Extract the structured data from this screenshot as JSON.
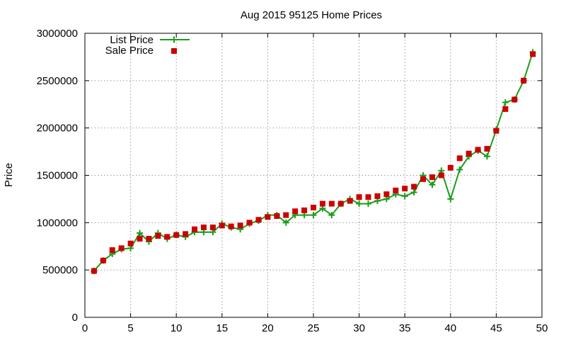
{
  "chart_data": {
    "type": "line",
    "title": "Aug 2015 95125 Home Prices",
    "xlabel": "",
    "ylabel": "Price",
    "xlim": [
      0,
      50
    ],
    "ylim": [
      0,
      3000000
    ],
    "x_ticks": [
      0,
      5,
      10,
      15,
      20,
      25,
      30,
      35,
      40,
      45,
      50
    ],
    "y_ticks": [
      0,
      500000,
      1000000,
      1500000,
      2000000,
      2500000,
      3000000
    ],
    "grid": true,
    "legend_position": "top-left",
    "x": [
      1,
      2,
      3,
      4,
      5,
      6,
      7,
      8,
      9,
      10,
      11,
      12,
      13,
      14,
      15,
      16,
      17,
      18,
      19,
      20,
      21,
      22,
      23,
      24,
      25,
      26,
      27,
      28,
      29,
      30,
      31,
      32,
      33,
      34,
      35,
      36,
      37,
      38,
      39,
      40,
      41,
      42,
      43,
      44,
      45,
      46,
      47,
      48,
      49
    ],
    "series": [
      {
        "name": "List Price",
        "style": "line-with-plus-markers",
        "color": "#1a9e1a",
        "values": [
          490000,
          600000,
          670000,
          720000,
          730000,
          890000,
          800000,
          890000,
          830000,
          870000,
          850000,
          900000,
          900000,
          900000,
          990000,
          950000,
          930000,
          990000,
          1020000,
          1080000,
          1080000,
          1000000,
          1080000,
          1080000,
          1080000,
          1150000,
          1080000,
          1200000,
          1250000,
          1200000,
          1200000,
          1230000,
          1250000,
          1300000,
          1280000,
          1320000,
          1500000,
          1400000,
          1550000,
          1250000,
          1560000,
          1700000,
          1760000,
          1700000,
          1980000,
          2270000,
          2300000,
          2500000,
          2800000
        ]
      },
      {
        "name": "Sale Price",
        "style": "square-markers",
        "color": "#cc0000",
        "values": [
          490000,
          600000,
          710000,
          730000,
          780000,
          830000,
          830000,
          860000,
          850000,
          870000,
          880000,
          930000,
          950000,
          950000,
          970000,
          960000,
          970000,
          1000000,
          1030000,
          1060000,
          1070000,
          1080000,
          1120000,
          1130000,
          1160000,
          1200000,
          1200000,
          1200000,
          1230000,
          1270000,
          1270000,
          1280000,
          1300000,
          1340000,
          1360000,
          1380000,
          1460000,
          1480000,
          1500000,
          1580000,
          1680000,
          1730000,
          1770000,
          1780000,
          1970000,
          2200000,
          2300000,
          2500000,
          2780000
        ]
      }
    ]
  }
}
